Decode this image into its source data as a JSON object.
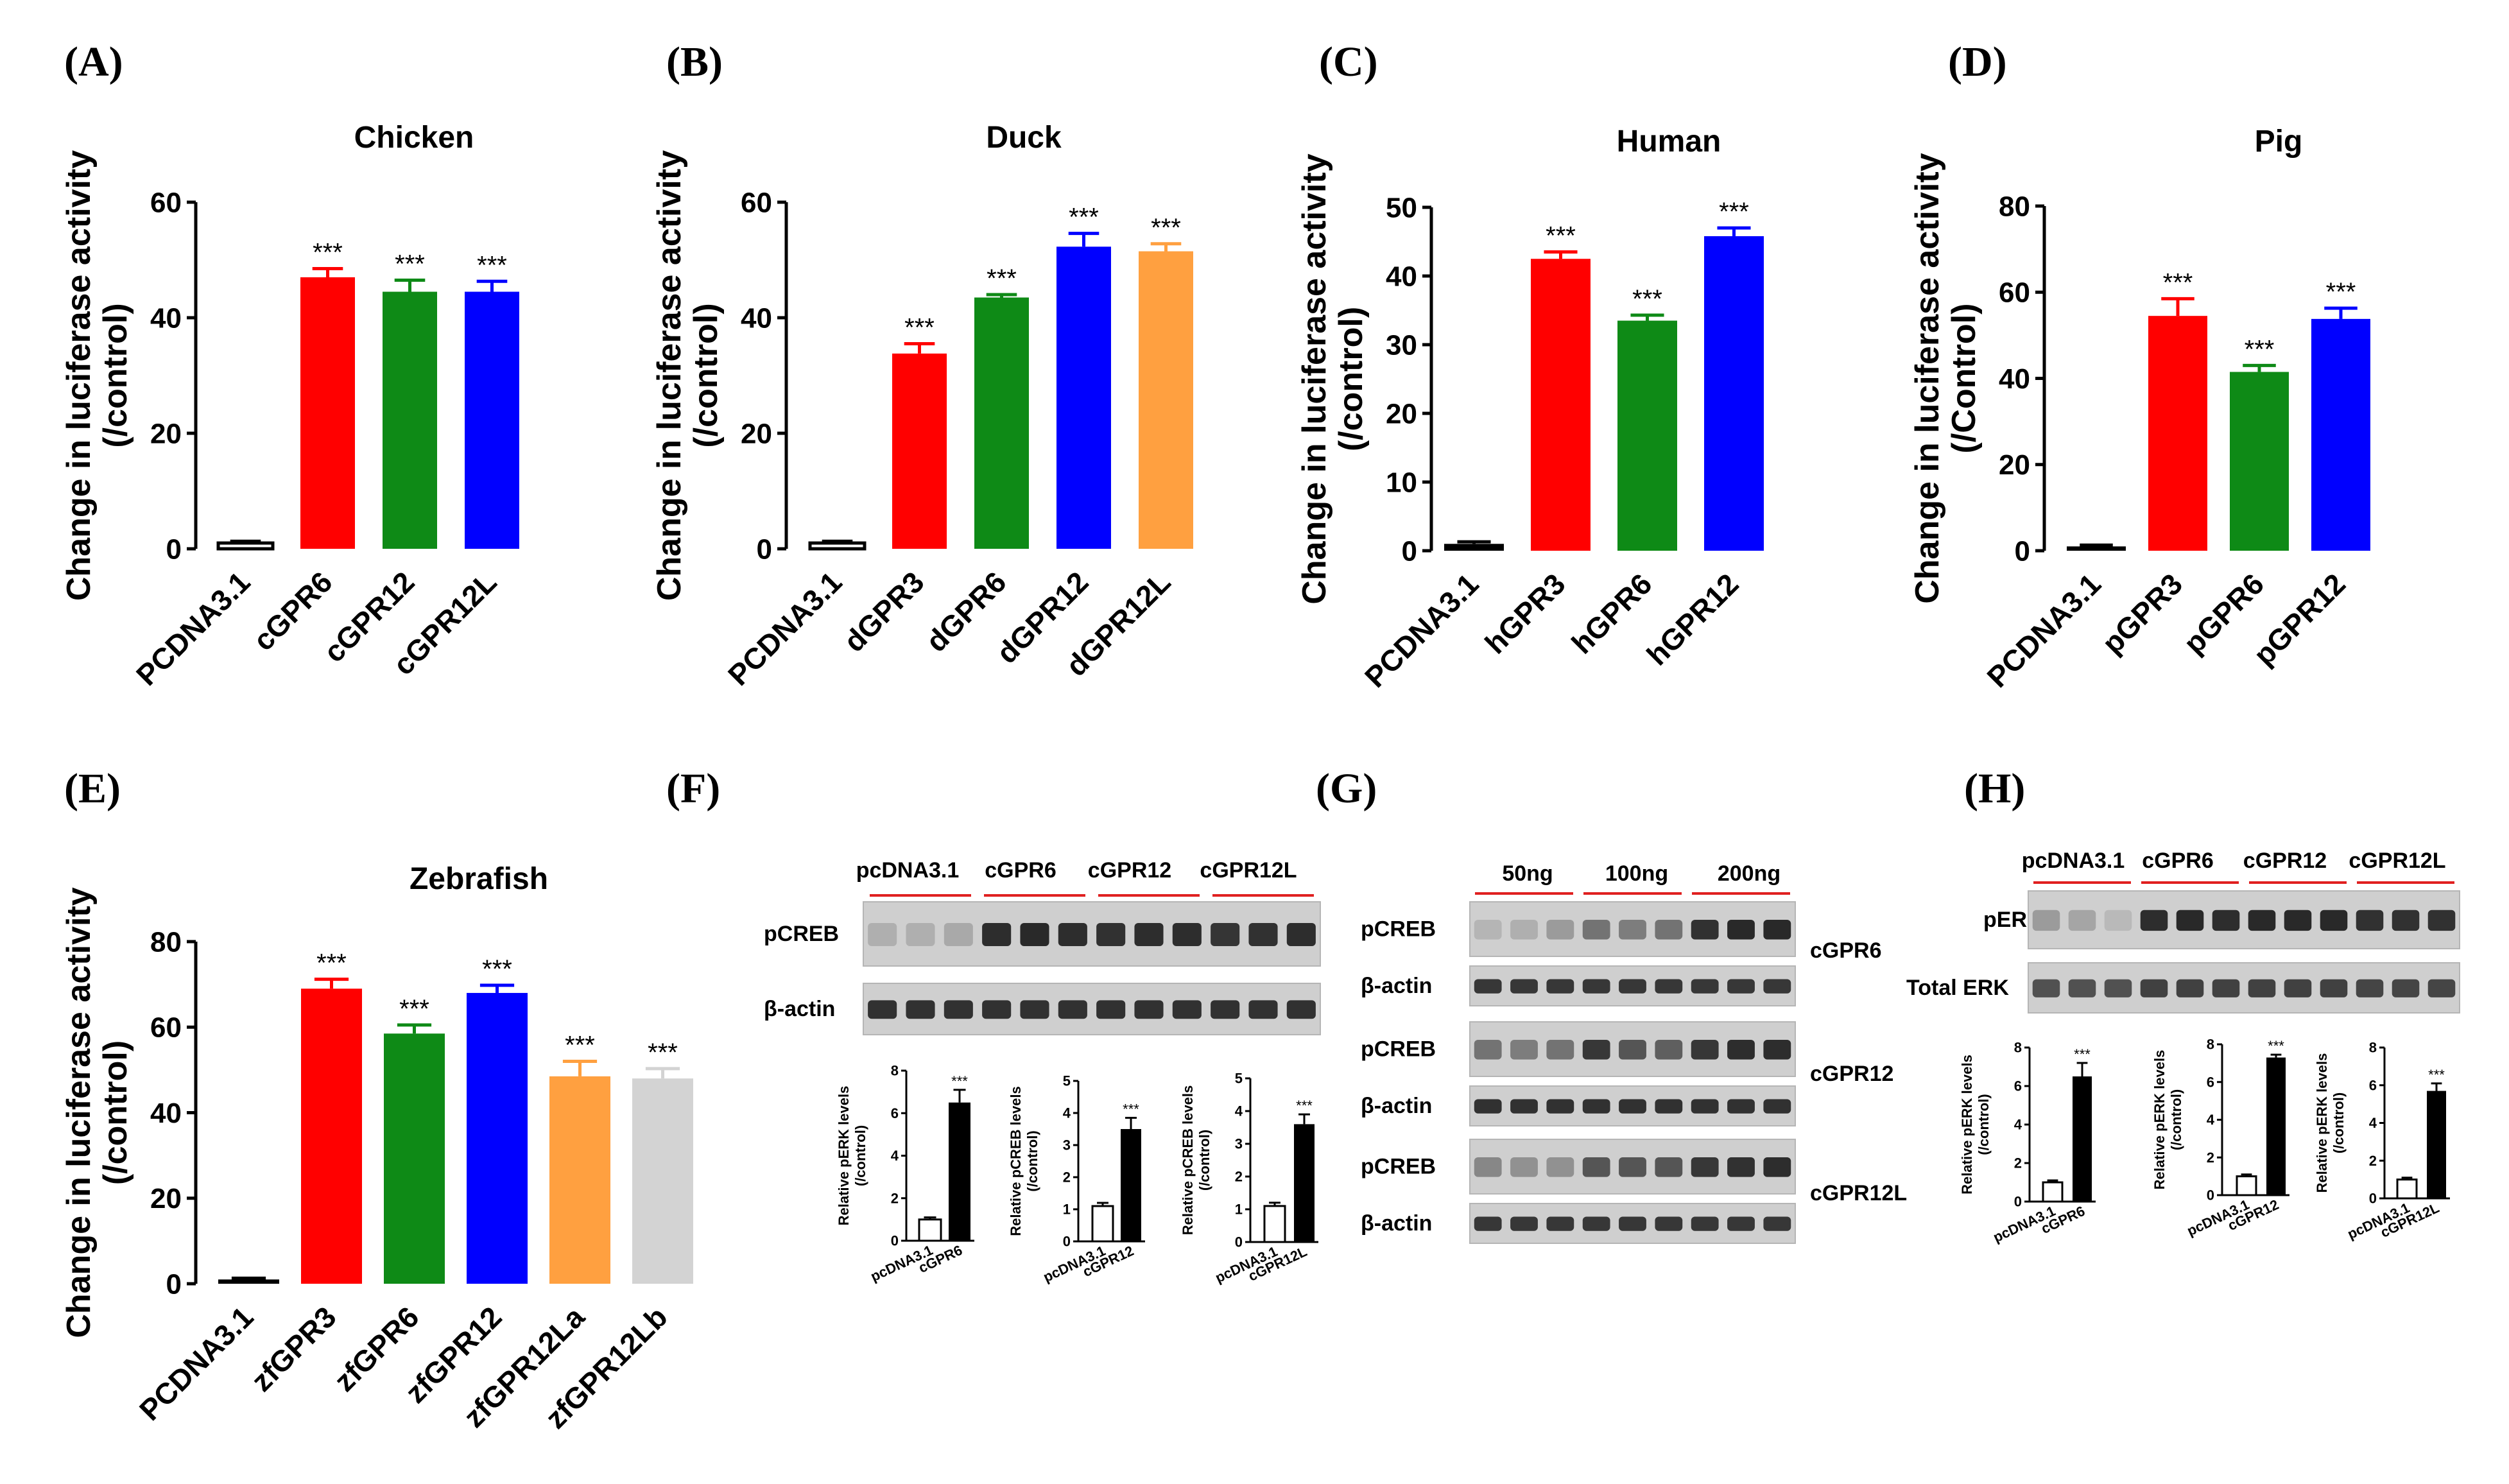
{
  "figure": {
    "panel_labels": [
      "(A)",
      "(B)",
      "(C)",
      "(D)",
      "(E)",
      "(F)",
      "(G)",
      "(H)"
    ]
  },
  "chart_data": [
    {
      "id": "A",
      "type": "bar",
      "title": "Chicken",
      "ylabel": "Change in luciferase activity",
      "ylabel2": "(/control)",
      "ylim": [
        0,
        60
      ],
      "yticks": [
        0,
        20,
        40,
        60
      ],
      "categories": [
        "PCDNA3.1",
        "cGPR6",
        "cGPR12",
        "cGPR12L"
      ],
      "values": [
        1,
        47,
        44.5,
        44.5
      ],
      "errors": [
        0.3,
        1.5,
        2,
        1.8
      ],
      "colors": [
        "#ffffff",
        "#ff0000",
        "#0e8a16",
        "#0000ff"
      ],
      "significance": [
        "",
        "***",
        "***",
        "***"
      ]
    },
    {
      "id": "B",
      "type": "bar",
      "title": "Duck",
      "ylabel": "Change in luciferase activity",
      "ylabel2": "(/control)",
      "ylim": [
        0,
        60
      ],
      "yticks": [
        0,
        20,
        40,
        60
      ],
      "categories": [
        "PCDNA3.1",
        "dGPR3",
        "dGPR6",
        "dGPR12",
        "dGPR12L"
      ],
      "values": [
        1,
        33.8,
        43.5,
        52.3,
        51.5
      ],
      "errors": [
        0.3,
        1.7,
        0.5,
        2.3,
        1.3
      ],
      "colors": [
        "#ffffff",
        "#ff0000",
        "#0e8a16",
        "#0000ff",
        "#ffa040"
      ],
      "significance": [
        "",
        "***",
        "***",
        "***",
        "***"
      ]
    },
    {
      "id": "C",
      "type": "bar",
      "title": "Human",
      "ylabel": "Change in luciferase activity",
      "ylabel2": "(/control)",
      "ylim": [
        0,
        50
      ],
      "yticks": [
        0,
        10,
        20,
        30,
        40,
        50
      ],
      "categories": [
        "PCDNA3.1",
        "hGPR3",
        "hGPR6",
        "hGPR12"
      ],
      "values": [
        1,
        42.5,
        33.5,
        45.8
      ],
      "errors": [
        0.3,
        1,
        0.8,
        1.2
      ],
      "colors": [
        "#000000",
        "#ff0000",
        "#0e8a16",
        "#0000ff"
      ],
      "significance": [
        "",
        "***",
        "***",
        "***"
      ]
    },
    {
      "id": "D",
      "type": "bar",
      "title": "Pig",
      "ylabel": "Change in luciferase activity",
      "ylabel2": "(/Control)",
      "ylim": [
        0,
        80
      ],
      "yticks": [
        0,
        20,
        40,
        60,
        80
      ],
      "categories": [
        "PCDNA3.1",
        "pGPR3",
        "pGPR6",
        "pGPR12"
      ],
      "values": [
        1,
        54.5,
        41.5,
        53.8
      ],
      "errors": [
        0.3,
        4,
        1.5,
        2.5
      ],
      "colors": [
        "#000000",
        "#ff0000",
        "#0e8a16",
        "#0000ff"
      ],
      "significance": [
        "",
        "***",
        "***",
        "***"
      ]
    },
    {
      "id": "E",
      "type": "bar",
      "title": "Zebrafish",
      "ylabel": "Change in luciferase activity",
      "ylabel2": "(/control)",
      "ylim": [
        0,
        80
      ],
      "yticks": [
        0,
        20,
        40,
        60,
        80
      ],
      "categories": [
        "PCDNA3.1",
        "zfGPR3",
        "zfGPR6",
        "zfGPR12",
        "zfGPR12La",
        "zfGPR12Lb"
      ],
      "values": [
        1,
        69,
        58.5,
        68,
        48.5,
        48
      ],
      "errors": [
        0.3,
        2.2,
        2,
        1.8,
        3.5,
        2.3
      ],
      "colors": [
        "#000000",
        "#ff0000",
        "#0e8a16",
        "#0000ff",
        "#ffa040",
        "#d3d3d3"
      ],
      "significance": [
        "",
        "***",
        "***",
        "***",
        "***",
        "***"
      ]
    },
    {
      "id": "F1",
      "type": "bar",
      "ylabel": "Relative pERK levels",
      "ylabel2": "(/control)",
      "ylim": [
        0,
        8
      ],
      "yticks": [
        0,
        2,
        4,
        6,
        8
      ],
      "categories": [
        "pcDNA3.1",
        "cGPR6"
      ],
      "values": [
        1,
        6.5
      ],
      "errors": [
        0.1,
        0.6
      ],
      "colors": [
        "#ffffff",
        "#000000"
      ],
      "significance": [
        "",
        "***"
      ]
    },
    {
      "id": "F2",
      "type": "bar",
      "ylabel": "Relative pCREB levels",
      "ylabel2": "(/control)",
      "ylim": [
        0,
        5
      ],
      "yticks": [
        0,
        1,
        2,
        3,
        4,
        5
      ],
      "categories": [
        "pcDNA3.1",
        "cGPR12"
      ],
      "values": [
        1.1,
        3.5
      ],
      "errors": [
        0.1,
        0.35
      ],
      "colors": [
        "#ffffff",
        "#000000"
      ],
      "significance": [
        "",
        "***"
      ]
    },
    {
      "id": "F3",
      "type": "bar",
      "ylabel": "Relative pCREB levels",
      "ylabel2": "(/control)",
      "ylim": [
        0,
        5
      ],
      "yticks": [
        0,
        1,
        2,
        3,
        4,
        5
      ],
      "categories": [
        "pcDNA3.1",
        "cGPR12L"
      ],
      "values": [
        1.1,
        3.6
      ],
      "errors": [
        0.1,
        0.3
      ],
      "colors": [
        "#ffffff",
        "#000000"
      ],
      "significance": [
        "",
        "***"
      ]
    },
    {
      "id": "H1",
      "type": "bar",
      "ylabel": "Relative pERK levels",
      "ylabel2": "(/control)",
      "ylim": [
        0,
        8
      ],
      "yticks": [
        0,
        2,
        4,
        6,
        8
      ],
      "categories": [
        "pcDNA3.1",
        "cGPR6"
      ],
      "values": [
        1,
        6.5
      ],
      "errors": [
        0.1,
        0.7
      ],
      "colors": [
        "#ffffff",
        "#000000"
      ],
      "significance": [
        "",
        "***"
      ]
    },
    {
      "id": "H2",
      "type": "bar",
      "ylabel": "Relative pERK levels",
      "ylabel2": "(/control)",
      "ylim": [
        0,
        8
      ],
      "yticks": [
        0,
        2,
        4,
        6,
        8
      ],
      "categories": [
        "pcDNA3.1",
        "cGPR12"
      ],
      "values": [
        1,
        7.3
      ],
      "errors": [
        0.1,
        0.15
      ],
      "colors": [
        "#ffffff",
        "#000000"
      ],
      "significance": [
        "",
        "***"
      ]
    },
    {
      "id": "H3",
      "type": "bar",
      "ylabel": "Relative pERK levels",
      "ylabel2": "(/control)",
      "ylim": [
        0,
        8
      ],
      "yticks": [
        0,
        2,
        4,
        6,
        8
      ],
      "categories": [
        "pcDNA3.1",
        "cGPR12L"
      ],
      "values": [
        1,
        5.7
      ],
      "errors": [
        0.1,
        0.4
      ],
      "colors": [
        "#ffffff",
        "#000000"
      ],
      "significance": [
        "",
        "***"
      ]
    }
  ],
  "blots": {
    "F": {
      "groups": [
        "pcDNA3.1",
        "cGPR6",
        "cGPR12",
        "cGPR12L"
      ],
      "rows": [
        {
          "label": "pCREB",
          "intensities": [
            0.25,
            0.25,
            0.28,
            0.9,
            0.92,
            0.9,
            0.88,
            0.9,
            0.9,
            0.86,
            0.88,
            0.9
          ]
        },
        {
          "label": "β-actin",
          "intensities": [
            0.88,
            0.88,
            0.88,
            0.88,
            0.88,
            0.88,
            0.88,
            0.88,
            0.88,
            0.88,
            0.88,
            0.88
          ]
        }
      ]
    },
    "G": {
      "doses": [
        "50ng",
        "100ng",
        "200ng"
      ],
      "blocks": [
        {
          "name": "cGPR6",
          "rows": [
            {
              "label": "pCREB",
              "intensities": [
                0.22,
                0.25,
                0.35,
                0.55,
                0.5,
                0.55,
                0.88,
                0.92,
                0.92
              ]
            },
            {
              "label": "β-actin",
              "intensities": [
                0.85,
                0.85,
                0.85,
                0.85,
                0.85,
                0.85,
                0.85,
                0.85,
                0.85
              ]
            }
          ]
        },
        {
          "name": "cGPR12",
          "rows": [
            {
              "label": "pCREB",
              "intensities": [
                0.55,
                0.5,
                0.55,
                0.85,
                0.7,
                0.65,
                0.85,
                0.9,
                0.9
              ]
            },
            {
              "label": "β-actin",
              "intensities": [
                0.88,
                0.88,
                0.88,
                0.88,
                0.88,
                0.88,
                0.88,
                0.88,
                0.88
              ]
            }
          ]
        },
        {
          "name": "cGPR12L",
          "rows": [
            {
              "label": "pCREB",
              "intensities": [
                0.45,
                0.4,
                0.4,
                0.7,
                0.7,
                0.7,
                0.85,
                0.88,
                0.9
              ]
            },
            {
              "label": "β-actin",
              "intensities": [
                0.85,
                0.85,
                0.85,
                0.85,
                0.85,
                0.85,
                0.85,
                0.85,
                0.85
              ]
            }
          ]
        }
      ]
    },
    "H": {
      "groups": [
        "pcDNA3.1",
        "cGPR6",
        "cGPR12",
        "cGPR12L"
      ],
      "rows": [
        {
          "label": "pERK",
          "intensities": [
            0.35,
            0.3,
            0.2,
            0.9,
            0.92,
            0.9,
            0.92,
            0.92,
            0.92,
            0.88,
            0.88,
            0.88
          ]
        },
        {
          "label": "Total ERK",
          "intensities": [
            0.72,
            0.72,
            0.72,
            0.8,
            0.8,
            0.8,
            0.8,
            0.8,
            0.8,
            0.78,
            0.78,
            0.78
          ]
        }
      ]
    }
  }
}
